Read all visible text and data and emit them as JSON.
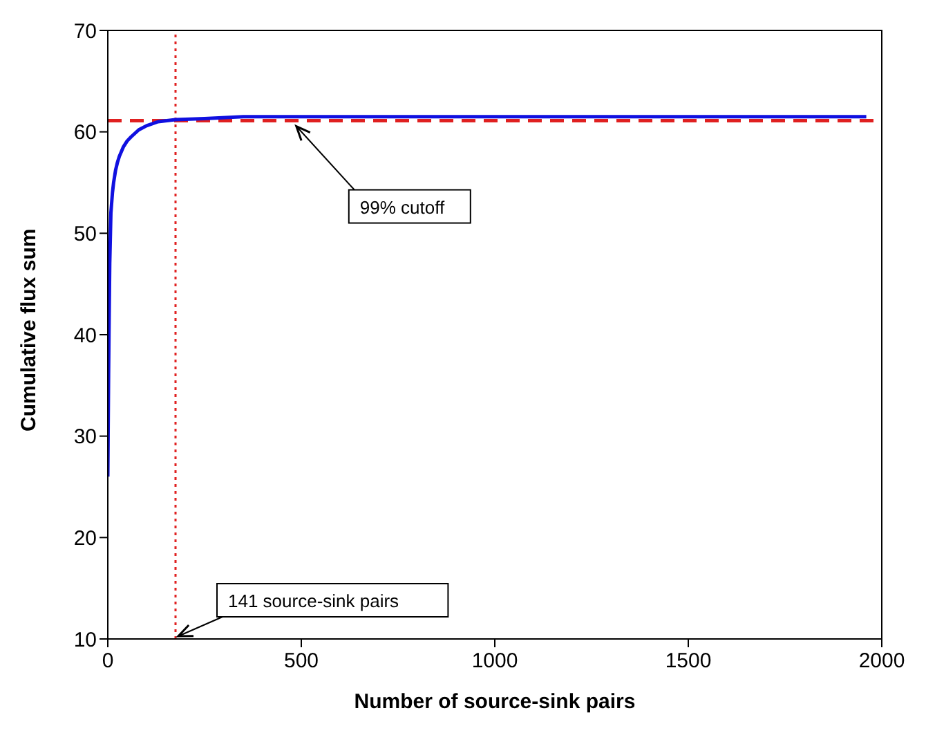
{
  "chart_data": {
    "type": "line",
    "xlabel": "Number of source-sink pairs",
    "ylabel": "Cumulative flux sum",
    "xlim": [
      0,
      2000
    ],
    "xticks": [
      0,
      500,
      1000,
      1500,
      2000
    ],
    "ylim": [
      10,
      70
    ],
    "yticks": [
      10,
      20,
      30,
      40,
      50,
      60,
      70
    ],
    "marker": "none",
    "line_style": "solid",
    "series": [
      {
        "color": "#1010e0",
        "x": [
          0,
          2,
          3,
          5,
          8,
          12,
          15,
          20,
          25,
          30,
          40,
          50,
          60,
          80,
          100,
          130,
          175,
          250,
          350,
          1000,
          1960
        ],
        "values": [
          26,
          36,
          40,
          47,
          52,
          54,
          55,
          56.2,
          57,
          57.6,
          58.5,
          59.1,
          59.5,
          60.2,
          60.6,
          61,
          61.2,
          61.3,
          61.5,
          61.5,
          61.5
        ]
      }
    ],
    "ref_lines": [
      {
        "axis": "y",
        "value": 61.1,
        "color": "#e02020",
        "line_style": "dashed"
      },
      {
        "axis": "x",
        "value": 175,
        "color": "#e02020",
        "line_style": "dotted"
      }
    ],
    "annotations": [
      {
        "text": "99% cutoff",
        "x": 480,
        "y": 61.1
      },
      {
        "text": "141 source-sink pairs",
        "x": 175,
        "y": 10
      }
    ]
  }
}
